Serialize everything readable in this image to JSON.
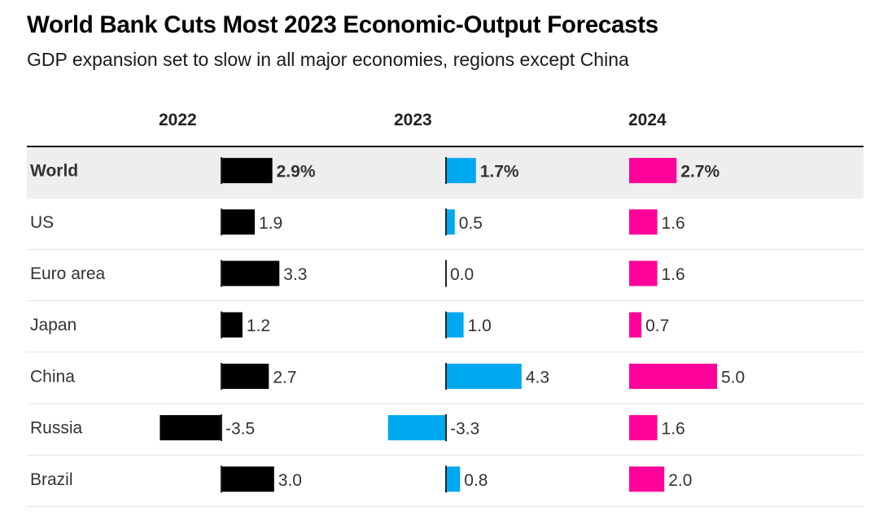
{
  "chart_data": {
    "type": "bar",
    "title": "World Bank Cuts Most 2023 Economic-Output Forecasts",
    "subtitle": "GDP expansion set to slow in all major economies, regions except China",
    "columns": [
      "2022",
      "2023",
      "2024"
    ],
    "categories": [
      "World",
      "US",
      "Euro area",
      "Japan",
      "China",
      "Russia",
      "Brazil"
    ],
    "highlighted_category": "World",
    "series": [
      {
        "name": "2022",
        "color": "#000000",
        "values": [
          2.9,
          1.9,
          3.3,
          1.2,
          2.7,
          -3.5,
          3.0
        ]
      },
      {
        "name": "2023",
        "color": "#00a8f0",
        "values": [
          1.7,
          0.5,
          0.0,
          1.0,
          4.3,
          -3.3,
          0.8
        ]
      },
      {
        "name": "2024",
        "color": "#ff0099",
        "values": [
          2.7,
          1.6,
          1.6,
          0.7,
          5.0,
          1.6,
          2.0
        ]
      }
    ],
    "labels": [
      [
        "2.9%",
        "1.9",
        "3.3",
        "1.2",
        "2.7",
        "-3.5",
        "3.0"
      ],
      [
        "1.7%",
        "0.5",
        "0.0",
        "1.0",
        "4.3",
        "-3.3",
        "0.8"
      ],
      [
        "2.7%",
        "1.6",
        "1.6",
        "0.7",
        "5.0",
        "1.6",
        "2.0"
      ]
    ],
    "unit": "%"
  }
}
